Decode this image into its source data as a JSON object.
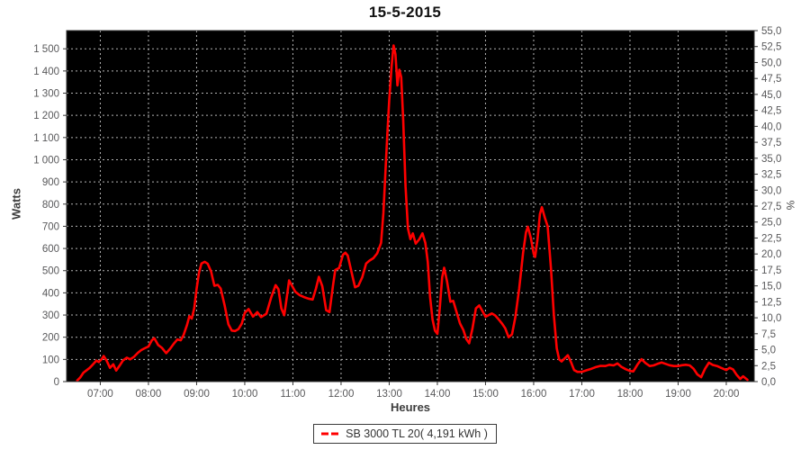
{
  "chart_data": {
    "type": "line",
    "title": "15-5-2015",
    "xlabel": "Heures",
    "ylabel_left": "Watts",
    "ylabel_right": "%",
    "plot_bg": "#000000",
    "grid_color": "#b4b4b4",
    "axis_color": "#333333",
    "tick_label_color": "#58585a",
    "grid": true,
    "x_range": [
      6.3,
      20.58
    ],
    "y_range_watts": [
      0,
      1582
    ],
    "y_range_percent": [
      0,
      55
    ],
    "x_ticks": [
      {
        "value": 7,
        "label": "07:00"
      },
      {
        "value": 8,
        "label": "08:00"
      },
      {
        "value": 9,
        "label": "09:00"
      },
      {
        "value": 10,
        "label": "10:00"
      },
      {
        "value": 11,
        "label": "11:00"
      },
      {
        "value": 12,
        "label": "12:00"
      },
      {
        "value": 13,
        "label": "13:00"
      },
      {
        "value": 14,
        "label": "14:00"
      },
      {
        "value": 15,
        "label": "15:00"
      },
      {
        "value": 16,
        "label": "16:00"
      },
      {
        "value": 17,
        "label": "17:00"
      },
      {
        "value": 18,
        "label": "18:00"
      },
      {
        "value": 19,
        "label": "19:00"
      },
      {
        "value": 20,
        "label": "20:00"
      }
    ],
    "y_ticks_watts": [
      {
        "value": 0,
        "label": "0"
      },
      {
        "value": 100,
        "label": "100"
      },
      {
        "value": 200,
        "label": "200"
      },
      {
        "value": 300,
        "label": "300"
      },
      {
        "value": 400,
        "label": "400"
      },
      {
        "value": 500,
        "label": "500"
      },
      {
        "value": 600,
        "label": "600"
      },
      {
        "value": 700,
        "label": "700"
      },
      {
        "value": 800,
        "label": "800"
      },
      {
        "value": 900,
        "label": "900"
      },
      {
        "value": 1000,
        "label": "1 000"
      },
      {
        "value": 1100,
        "label": "1 100"
      },
      {
        "value": 1200,
        "label": "1 200"
      },
      {
        "value": 1300,
        "label": "1 300"
      },
      {
        "value": 1400,
        "label": "1 400"
      },
      {
        "value": 1500,
        "label": "1 500"
      }
    ],
    "y_ticks_percent": [
      {
        "value": 0,
        "label": "0,0"
      },
      {
        "value": 2.5,
        "label": "2,5"
      },
      {
        "value": 5,
        "label": "5,0"
      },
      {
        "value": 7.5,
        "label": "7,5"
      },
      {
        "value": 10,
        "label": "10,0"
      },
      {
        "value": 12.5,
        "label": "12,5"
      },
      {
        "value": 15,
        "label": "15,0"
      },
      {
        "value": 17.5,
        "label": "17,5"
      },
      {
        "value": 20,
        "label": "20,0"
      },
      {
        "value": 22.5,
        "label": "22,5"
      },
      {
        "value": 25,
        "label": "25,0"
      },
      {
        "value": 27.5,
        "label": "27,5"
      },
      {
        "value": 30,
        "label": "30,0"
      },
      {
        "value": 32.5,
        "label": "32,5"
      },
      {
        "value": 35,
        "label": "35,0"
      },
      {
        "value": 37.5,
        "label": "37,5"
      },
      {
        "value": 40,
        "label": "40,0"
      },
      {
        "value": 42.5,
        "label": "42,5"
      },
      {
        "value": 45,
        "label": "45,0"
      },
      {
        "value": 47.5,
        "label": "47,5"
      },
      {
        "value": 50,
        "label": "50,0"
      },
      {
        "value": 52.5,
        "label": "52,5"
      },
      {
        "value": 55,
        "label": "55,0"
      }
    ],
    "legend": {
      "position": "bottom-center",
      "label": "SB 3000 TL 20( 4,191 kWh )",
      "swatch_color": "#ff0000"
    },
    "series": [
      {
        "name": "SB 3000 TL 20( 4,191 kWh )",
        "color": "#ff0000",
        "points": [
          [
            6.52,
            5
          ],
          [
            6.58,
            18
          ],
          [
            6.65,
            40
          ],
          [
            6.72,
            52
          ],
          [
            6.78,
            62
          ],
          [
            6.85,
            78
          ],
          [
            6.92,
            95
          ],
          [
            6.97,
            88
          ],
          [
            7.03,
            102
          ],
          [
            7.07,
            115
          ],
          [
            7.13,
            95
          ],
          [
            7.2,
            62
          ],
          [
            7.27,
            78
          ],
          [
            7.33,
            50
          ],
          [
            7.4,
            72
          ],
          [
            7.47,
            95
          ],
          [
            7.55,
            108
          ],
          [
            7.62,
            100
          ],
          [
            7.7,
            112
          ],
          [
            7.78,
            130
          ],
          [
            7.85,
            142
          ],
          [
            7.92,
            150
          ],
          [
            8.0,
            158
          ],
          [
            8.07,
            186
          ],
          [
            8.12,
            196
          ],
          [
            8.2,
            165
          ],
          [
            8.28,
            152
          ],
          [
            8.37,
            128
          ],
          [
            8.45,
            148
          ],
          [
            8.53,
            172
          ],
          [
            8.6,
            190
          ],
          [
            8.67,
            186
          ],
          [
            8.73,
            210
          ],
          [
            8.8,
            255
          ],
          [
            8.85,
            295
          ],
          [
            8.9,
            284
          ],
          [
            8.95,
            330
          ],
          [
            9.0,
            420
          ],
          [
            9.05,
            490
          ],
          [
            9.1,
            532
          ],
          [
            9.17,
            540
          ],
          [
            9.23,
            531
          ],
          [
            9.3,
            497
          ],
          [
            9.37,
            432
          ],
          [
            9.44,
            436
          ],
          [
            9.5,
            420
          ],
          [
            9.58,
            345
          ],
          [
            9.66,
            258
          ],
          [
            9.73,
            230
          ],
          [
            9.8,
            228
          ],
          [
            9.87,
            237
          ],
          [
            9.94,
            262
          ],
          [
            10.0,
            310
          ],
          [
            10.08,
            327
          ],
          [
            10.17,
            293
          ],
          [
            10.26,
            313
          ],
          [
            10.34,
            291
          ],
          [
            10.45,
            306
          ],
          [
            10.55,
            380
          ],
          [
            10.64,
            435
          ],
          [
            10.7,
            416
          ],
          [
            10.76,
            330
          ],
          [
            10.82,
            299
          ],
          [
            10.88,
            390
          ],
          [
            10.92,
            456
          ],
          [
            10.99,
            429
          ],
          [
            11.05,
            405
          ],
          [
            11.14,
            390
          ],
          [
            11.23,
            381
          ],
          [
            11.32,
            374
          ],
          [
            11.41,
            370
          ],
          [
            11.48,
            420
          ],
          [
            11.54,
            472
          ],
          [
            11.61,
            430
          ],
          [
            11.69,
            322
          ],
          [
            11.76,
            313
          ],
          [
            11.83,
            430
          ],
          [
            11.88,
            503
          ],
          [
            11.96,
            512
          ],
          [
            12.04,
            572
          ],
          [
            12.09,
            581
          ],
          [
            12.14,
            568
          ],
          [
            12.21,
            500
          ],
          [
            12.29,
            425
          ],
          [
            12.36,
            432
          ],
          [
            12.44,
            470
          ],
          [
            12.52,
            532
          ],
          [
            12.59,
            545
          ],
          [
            12.67,
            556
          ],
          [
            12.75,
            578
          ],
          [
            12.83,
            625
          ],
          [
            12.88,
            760
          ],
          [
            12.92,
            940
          ],
          [
            12.96,
            1110
          ],
          [
            13.0,
            1270
          ],
          [
            13.05,
            1420
          ],
          [
            13.09,
            1515
          ],
          [
            13.13,
            1475
          ],
          [
            13.17,
            1335
          ],
          [
            13.21,
            1405
          ],
          [
            13.25,
            1372
          ],
          [
            13.29,
            1180
          ],
          [
            13.34,
            880
          ],
          [
            13.39,
            690
          ],
          [
            13.44,
            642
          ],
          [
            13.49,
            668
          ],
          [
            13.55,
            622
          ],
          [
            13.62,
            640
          ],
          [
            13.69,
            668
          ],
          [
            13.75,
            625
          ],
          [
            13.8,
            540
          ],
          [
            13.85,
            380
          ],
          [
            13.9,
            280
          ],
          [
            13.95,
            230
          ],
          [
            14.0,
            215
          ],
          [
            14.05,
            330
          ],
          [
            14.1,
            470
          ],
          [
            14.14,
            513
          ],
          [
            14.2,
            452
          ],
          [
            14.27,
            360
          ],
          [
            14.33,
            364
          ],
          [
            14.4,
            312
          ],
          [
            14.47,
            262
          ],
          [
            14.54,
            232
          ],
          [
            14.6,
            192
          ],
          [
            14.66,
            173
          ],
          [
            14.73,
            240
          ],
          [
            14.8,
            330
          ],
          [
            14.87,
            343
          ],
          [
            14.94,
            316
          ],
          [
            15.0,
            292
          ],
          [
            15.07,
            300
          ],
          [
            15.13,
            307
          ],
          [
            15.2,
            298
          ],
          [
            15.27,
            281
          ],
          [
            15.34,
            262
          ],
          [
            15.41,
            240
          ],
          [
            15.48,
            200
          ],
          [
            15.55,
            213
          ],
          [
            15.62,
            290
          ],
          [
            15.7,
            420
          ],
          [
            15.78,
            580
          ],
          [
            15.84,
            672
          ],
          [
            15.88,
            698
          ],
          [
            15.94,
            648
          ],
          [
            16.0,
            575
          ],
          [
            16.03,
            562
          ],
          [
            16.08,
            640
          ],
          [
            16.13,
            755
          ],
          [
            16.17,
            786
          ],
          [
            16.23,
            740
          ],
          [
            16.29,
            700
          ],
          [
            16.36,
            510
          ],
          [
            16.42,
            300
          ],
          [
            16.48,
            150
          ],
          [
            16.53,
            100
          ],
          [
            16.58,
            91
          ],
          [
            16.64,
            104
          ],
          [
            16.71,
            119
          ],
          [
            16.78,
            85
          ],
          [
            16.84,
            52
          ],
          [
            16.91,
            44
          ],
          [
            17.0,
            44
          ],
          [
            17.1,
            51
          ],
          [
            17.2,
            58
          ],
          [
            17.3,
            66
          ],
          [
            17.39,
            71
          ],
          [
            17.49,
            70
          ],
          [
            17.57,
            76
          ],
          [
            17.66,
            73
          ],
          [
            17.74,
            82
          ],
          [
            17.82,
            67
          ],
          [
            17.91,
            56
          ],
          [
            18.0,
            48
          ],
          [
            18.07,
            46
          ],
          [
            18.16,
            78
          ],
          [
            18.24,
            101
          ],
          [
            18.32,
            84
          ],
          [
            18.41,
            70
          ],
          [
            18.49,
            73
          ],
          [
            18.57,
            80
          ],
          [
            18.66,
            86
          ],
          [
            18.74,
            80
          ],
          [
            18.82,
            74
          ],
          [
            18.91,
            70
          ],
          [
            19.0,
            70
          ],
          [
            19.08,
            74
          ],
          [
            19.16,
            76
          ],
          [
            19.24,
            73
          ],
          [
            19.32,
            58
          ],
          [
            19.4,
            32
          ],
          [
            19.48,
            20
          ],
          [
            19.56,
            58
          ],
          [
            19.64,
            85
          ],
          [
            19.72,
            75
          ],
          [
            19.81,
            70
          ],
          [
            19.89,
            62
          ],
          [
            20.0,
            52
          ],
          [
            20.07,
            62
          ],
          [
            20.14,
            55
          ],
          [
            20.21,
            32
          ],
          [
            20.29,
            12
          ],
          [
            20.35,
            24
          ],
          [
            20.44,
            8
          ]
        ]
      }
    ]
  }
}
